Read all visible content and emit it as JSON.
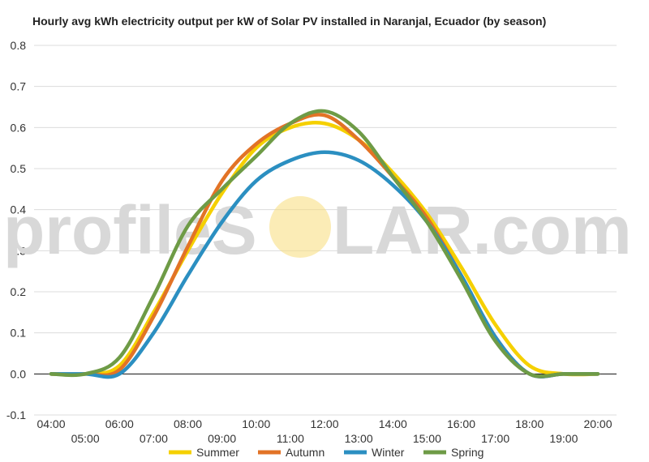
{
  "chart_data": {
    "type": "line",
    "title": "Hourly avg kWh electricity output per kW of Solar PV installed in Naranjal, Ecuador (by season)",
    "xlabel": "",
    "ylabel": "",
    "ylim": [
      -0.1,
      0.8
    ],
    "y_ticks": [
      "-0.1",
      "0.0",
      "0.1",
      "0.2",
      "0.3",
      "0.4",
      "0.5",
      "0.6",
      "0.7",
      "0.8"
    ],
    "y_tick_values": [
      -0.1,
      0.0,
      0.1,
      0.2,
      0.3,
      0.4,
      0.5,
      0.6,
      0.7,
      0.8
    ],
    "x": [
      "04:00",
      "05:00",
      "06:00",
      "07:00",
      "08:00",
      "09:00",
      "10:00",
      "11:00",
      "12:00",
      "13:00",
      "14:00",
      "15:00",
      "16:00",
      "17:00",
      "18:00",
      "19:00",
      "20:00"
    ],
    "grid": true,
    "legend_position": "bottom",
    "series": [
      {
        "name": "Summer",
        "color": "#f5d000",
        "values": [
          0.0,
          0.0,
          0.02,
          0.15,
          0.3,
          0.44,
          0.55,
          0.6,
          0.61,
          0.57,
          0.49,
          0.39,
          0.26,
          0.12,
          0.02,
          0.0,
          0.0
        ]
      },
      {
        "name": "Autumn",
        "color": "#e27326",
        "values": [
          0.0,
          0.0,
          0.01,
          0.14,
          0.31,
          0.47,
          0.56,
          0.61,
          0.63,
          0.57,
          0.48,
          0.38,
          0.24,
          0.09,
          0.0,
          0.0,
          0.0
        ]
      },
      {
        "name": "Winter",
        "color": "#2b8fc1",
        "values": [
          0.0,
          0.0,
          0.0,
          0.1,
          0.24,
          0.37,
          0.47,
          0.52,
          0.54,
          0.52,
          0.46,
          0.37,
          0.24,
          0.09,
          0.0,
          0.0,
          0.0
        ]
      },
      {
        "name": "Spring",
        "color": "#6e9b46",
        "values": [
          0.0,
          0.0,
          0.04,
          0.19,
          0.36,
          0.45,
          0.53,
          0.61,
          0.64,
          0.59,
          0.48,
          0.37,
          0.23,
          0.08,
          0.0,
          0.0,
          0.0
        ]
      }
    ]
  },
  "watermark": {
    "text_left": "profileS",
    "text_right": "LAR.com",
    "sun_color": "#f7dc7a"
  }
}
